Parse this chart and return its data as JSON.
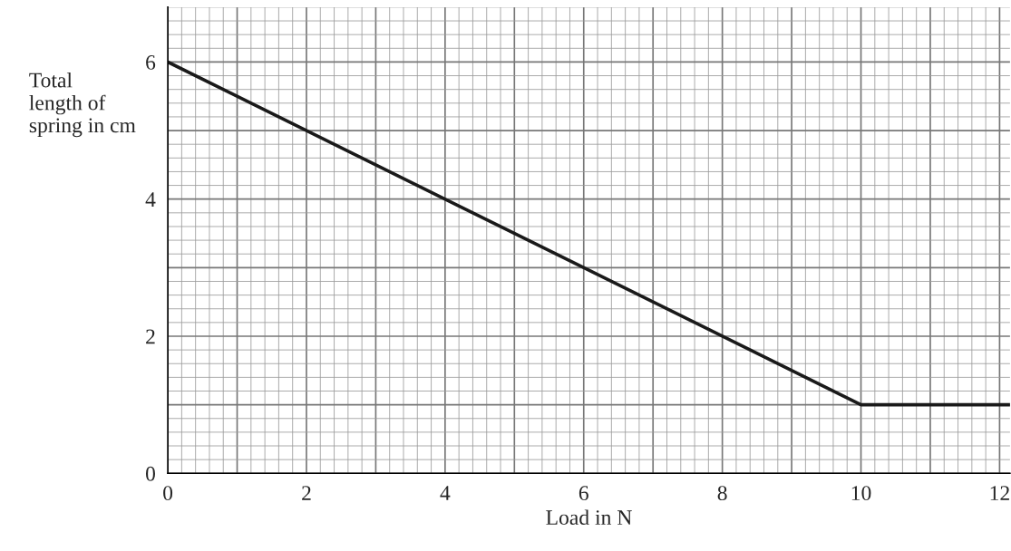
{
  "chart_data": {
    "type": "line",
    "x": [
      0,
      10,
      12.15
    ],
    "series": [
      {
        "color": "#1a1a1a",
        "values": [
          6,
          1,
          1
        ]
      }
    ],
    "xlabel": "Load in N",
    "ylabel": "Total\nlength of\nspring in cm",
    "xlim": [
      0,
      12.15
    ],
    "ylim": [
      0,
      6.8
    ],
    "xticks": [
      0,
      {
        "value": 1,
        "label": null
      },
      2,
      {
        "value": 3,
        "label": null
      },
      4,
      {
        "value": 5,
        "label": null
      },
      6,
      {
        "value": 7,
        "label": null
      },
      8,
      {
        "value": 9,
        "label": null
      },
      10,
      {
        "value": 11,
        "label": null
      },
      12
    ],
    "yticks": [
      0,
      {
        "value": 1,
        "label": null
      },
      2,
      {
        "value": 3,
        "label": null
      },
      4,
      {
        "value": 5,
        "label": null
      },
      6
    ],
    "grid": true,
    "marker": "none",
    "line_style": "solid",
    "legend": false
  }
}
